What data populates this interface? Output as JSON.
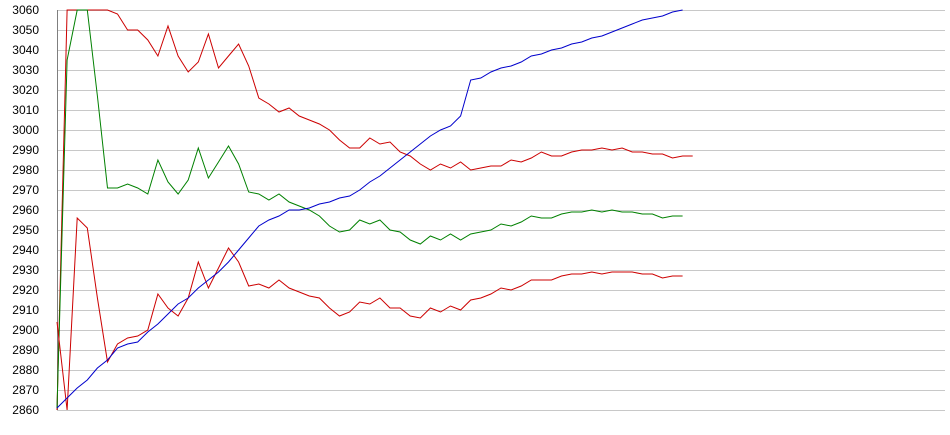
{
  "chart_data": {
    "type": "line",
    "title": "",
    "xlabel": "",
    "ylabel": "",
    "ylim": [
      2860,
      3060
    ],
    "xlim": [
      0,
      88
    ],
    "grid": true,
    "legend": "none",
    "y_ticks": [
      2860,
      2870,
      2880,
      2890,
      2900,
      2910,
      2920,
      2930,
      2940,
      2950,
      2960,
      2970,
      2980,
      2990,
      3000,
      3010,
      3020,
      3030,
      3040,
      3050,
      3060
    ],
    "series": [
      {
        "color": "#cc0000",
        "x": [
          0,
          1,
          2,
          3,
          4,
          5,
          6,
          7,
          8,
          9,
          10,
          11,
          12,
          13,
          14,
          15,
          16,
          17,
          18,
          19,
          20,
          21,
          22,
          23,
          24,
          25,
          26,
          27,
          28,
          29,
          30,
          31,
          32,
          33,
          34,
          35,
          36,
          37,
          38,
          39,
          40,
          41,
          42,
          43,
          44,
          45,
          46,
          47,
          48,
          49,
          50,
          51,
          52,
          53,
          54,
          55,
          56,
          57,
          58,
          59,
          60,
          61,
          62,
          63,
          64,
          65,
          66,
          67,
          68,
          69,
          70,
          71,
          72,
          73,
          74,
          75,
          76,
          77,
          78,
          79,
          80,
          81,
          82,
          83,
          84,
          85,
          86,
          87,
          88
        ],
        "values": [
          2860,
          3060,
          3060,
          3060,
          3060,
          3060,
          3058,
          3050,
          3050,
          3045,
          3037,
          3052,
          3037,
          3029,
          3034,
          3048,
          3031,
          3037,
          3043,
          3032,
          3016,
          3013,
          3009,
          3011,
          3007,
          3005,
          3003,
          3000,
          2995,
          2991,
          2991,
          2996,
          2993,
          2994,
          2989,
          2987,
          2983,
          2980,
          2983,
          2981,
          2984,
          2980,
          2981,
          2982,
          2982,
          2985,
          2984,
          2986,
          2989,
          2987,
          2987,
          2989,
          2990,
          2990,
          2991,
          2990,
          2991,
          2989,
          2989,
          2988,
          2988,
          2986,
          2987,
          2987,
          null,
          null,
          null,
          null,
          null,
          null,
          null,
          null,
          null,
          null,
          null,
          null,
          null,
          null,
          null,
          null,
          null,
          null,
          null,
          null,
          null,
          null,
          null,
          null,
          null
        ]
      },
      {
        "color": "#008000",
        "x": [
          0,
          1,
          2,
          3,
          4,
          5,
          6,
          7,
          8,
          9,
          10,
          11,
          12,
          13,
          14,
          15,
          16,
          17,
          18,
          19,
          20,
          21,
          22,
          23,
          24,
          25,
          26,
          27,
          28,
          29,
          30,
          31,
          32,
          33,
          34,
          35,
          36,
          37,
          38,
          39,
          40,
          41,
          42,
          43,
          44,
          45,
          46,
          47,
          48,
          49,
          50,
          51,
          52,
          53,
          54,
          55,
          56,
          57,
          58,
          59,
          60,
          61,
          62,
          63,
          64,
          65,
          66,
          67,
          68,
          69,
          70,
          71,
          72,
          73,
          74,
          75,
          76,
          77,
          78,
          79,
          80,
          81,
          82,
          83,
          84,
          85,
          86,
          87,
          88
        ],
        "values": [
          2861,
          3035,
          3060,
          3060,
          3017,
          2971,
          2971,
          2973,
          2971,
          2968,
          2985,
          2974,
          2968,
          2975,
          2991,
          2976,
          2984,
          2992,
          2983,
          2969,
          2968,
          2965,
          2968,
          2964,
          2962,
          2960,
          2957,
          2952,
          2949,
          2950,
          2955,
          2953,
          2955,
          2950,
          2949,
          2945,
          2943,
          2947,
          2945,
          2948,
          2945,
          2948,
          2949,
          2950,
          2953,
          2952,
          2954,
          2957,
          2956,
          2956,
          2958,
          2959,
          2959,
          2960,
          2959,
          2960,
          2959,
          2959,
          2958,
          2958,
          2956,
          2957,
          2957,
          null,
          null,
          null,
          null,
          null,
          null,
          null,
          null,
          null,
          null,
          null,
          null,
          null,
          null,
          null,
          null,
          null,
          null,
          null,
          null,
          null,
          null,
          null,
          null,
          null,
          null
        ]
      },
      {
        "color": "#cc0000",
        "x": [
          0,
          1,
          2,
          3,
          4,
          5,
          6,
          7,
          8,
          9,
          10,
          11,
          12,
          13,
          14,
          15,
          16,
          17,
          18,
          19,
          20,
          21,
          22,
          23,
          24,
          25,
          26,
          27,
          28,
          29,
          30,
          31,
          32,
          33,
          34,
          35,
          36,
          37,
          38,
          39,
          40,
          41,
          42,
          43,
          44,
          45,
          46,
          47,
          48,
          49,
          50,
          51,
          52,
          53,
          54,
          55,
          56,
          57,
          58,
          59,
          60,
          61,
          62,
          63,
          64,
          65,
          66,
          67,
          68,
          69,
          70,
          71,
          72,
          73,
          74,
          75,
          76,
          77,
          78,
          79,
          80,
          81,
          82,
          83,
          84,
          85,
          86,
          87,
          88
        ],
        "values": [
          2904,
          2860,
          2956,
          2951,
          2916,
          2884,
          2893,
          2896,
          2897,
          2900,
          2918,
          2911,
          2907,
          2916,
          2934,
          2921,
          2931,
          2941,
          2934,
          2922,
          2923,
          2921,
          2925,
          2921,
          2919,
          2917,
          2916,
          2911,
          2907,
          2909,
          2914,
          2913,
          2916,
          2911,
          2911,
          2907,
          2906,
          2911,
          2909,
          2912,
          2910,
          2915,
          2916,
          2918,
          2921,
          2920,
          2922,
          2925,
          2925,
          2925,
          2927,
          2928,
          2928,
          2929,
          2928,
          2929,
          2929,
          2929,
          2928,
          2928,
          2926,
          2927,
          2927,
          null,
          null,
          null,
          null,
          null,
          null,
          null,
          null,
          null,
          null,
          null,
          null,
          null,
          null,
          null,
          null,
          null,
          null,
          null,
          null,
          null,
          null,
          null,
          null,
          null,
          null
        ]
      },
      {
        "color": "#0000cc",
        "x": [
          0,
          1,
          2,
          3,
          4,
          5,
          6,
          7,
          8,
          9,
          10,
          11,
          12,
          13,
          14,
          15,
          16,
          17,
          18,
          19,
          20,
          21,
          22,
          23,
          24,
          25,
          26,
          27,
          28,
          29,
          30,
          31,
          32,
          33,
          34,
          35,
          36,
          37,
          38,
          39,
          40,
          41,
          42,
          43,
          44,
          45,
          46,
          47,
          48,
          49,
          50,
          51,
          52,
          53,
          54,
          55,
          56,
          57,
          58,
          59,
          60,
          61,
          62,
          63,
          64,
          65,
          66,
          67,
          68,
          69,
          70,
          71,
          72,
          73,
          74,
          75,
          76,
          77,
          78,
          79,
          80,
          81,
          82,
          83,
          84,
          85,
          86,
          87,
          88
        ],
        "values": [
          2861,
          2866,
          2871,
          2875,
          2881,
          2885,
          2891,
          2893,
          2894,
          2899,
          2903,
          2908,
          2913,
          2916,
          2921,
          2925,
          2929,
          2934,
          2940,
          2946,
          2952,
          2955,
          2957,
          2960,
          2960,
          2961,
          2963,
          2964,
          2966,
          2967,
          2970,
          2974,
          2977,
          2981,
          2985,
          2989,
          2993,
          2997,
          3000,
          3002,
          3007,
          3025,
          3026,
          3029,
          3031,
          3032,
          3034,
          3037,
          3038,
          3040,
          3041,
          3043,
          3044,
          3046,
          3047,
          3049,
          3051,
          3053,
          3055,
          3056,
          3057,
          3059,
          3060,
          null,
          null,
          null,
          null,
          null,
          null,
          null,
          null,
          null,
          null,
          null,
          null,
          null,
          null,
          null,
          null,
          null,
          null,
          null,
          null,
          null,
          null,
          null,
          null,
          null,
          null
        ]
      }
    ]
  }
}
